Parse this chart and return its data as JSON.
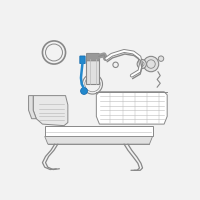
{
  "bg_color": "#f2f2f2",
  "line_color": "#888888",
  "highlight_color": "#2288cc",
  "light_gray": "#bbbbbb",
  "dark_gray": "#999999",
  "fill_white": "#ffffff",
  "fill_light": "#e0e0e0",
  "fill_tank": "#e8e8e8"
}
